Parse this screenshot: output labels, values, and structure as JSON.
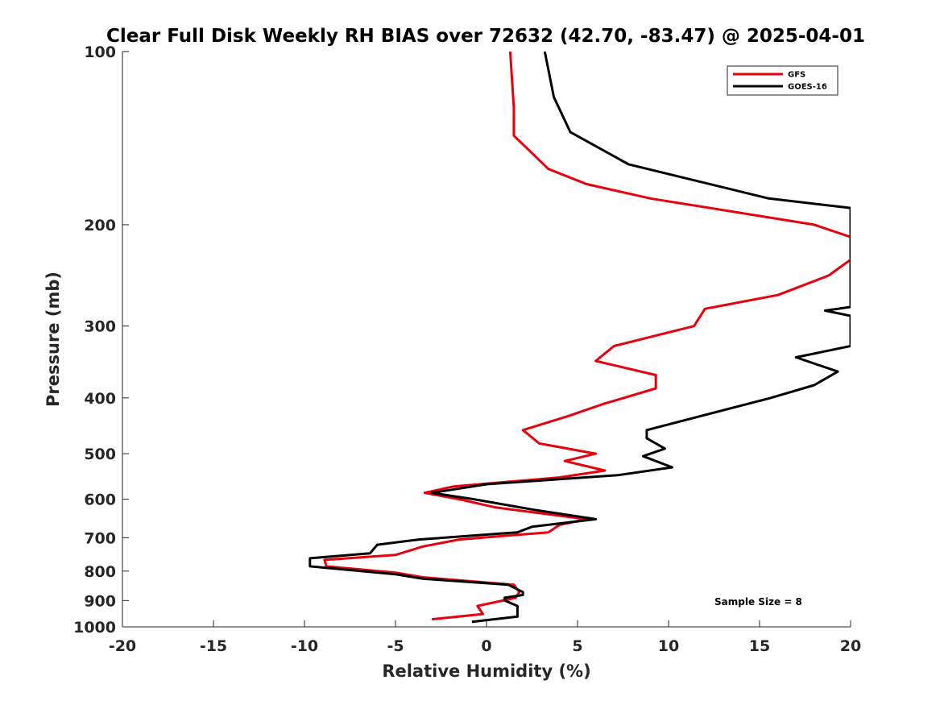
{
  "chart_data": {
    "type": "line",
    "title": "Clear Full Disk Weekly RH BIAS over 72632 (42.70, -83.47) @ 2025-04-01",
    "xlabel": "Relative Humidity (%)",
    "ylabel": "Pressure (mb)",
    "xlim": [
      -20,
      20
    ],
    "ylim": [
      100,
      1000
    ],
    "yscale": "log",
    "y_reversed": true,
    "xticks": [
      "-20",
      "-15",
      "-10",
      "-5",
      "0",
      "5",
      "10",
      "15",
      "20"
    ],
    "yticks": [
      {
        "value": 100,
        "label": "100"
      },
      {
        "value": 200,
        "label": "200"
      },
      {
        "value": 300,
        "label": "300"
      },
      {
        "value": 400,
        "label": "400"
      },
      {
        "value": 500,
        "label": "500"
      },
      {
        "value": 600,
        "label": "600"
      },
      {
        "value": 700,
        "label": "700"
      },
      {
        "value": 800,
        "label": "800"
      },
      {
        "value": 900,
        "label": "900"
      },
      {
        "value": 1000,
        "label": "1000"
      }
    ],
    "grid": false,
    "legend_position": "top-right",
    "series": [
      {
        "name": "GFS",
        "color": "#e8000b",
        "points": [
          [
            1.3,
            100
          ],
          [
            1.5,
            125
          ],
          [
            1.5,
            140
          ],
          [
            3.4,
            160
          ],
          [
            5.5,
            170
          ],
          [
            9.0,
            180
          ],
          [
            18.0,
            200
          ],
          [
            20.0,
            210
          ],
          [
            20.0,
            230
          ],
          [
            18.8,
            245
          ],
          [
            16.0,
            265
          ],
          [
            12.0,
            280
          ],
          [
            11.4,
            300
          ],
          [
            7.0,
            325
          ],
          [
            6.0,
            345
          ],
          [
            9.3,
            365
          ],
          [
            9.3,
            385
          ],
          [
            6.4,
            410
          ],
          [
            4.5,
            430
          ],
          [
            2.0,
            455
          ],
          [
            2.9,
            480
          ],
          [
            6.0,
            500
          ],
          [
            4.3,
            515
          ],
          [
            6.5,
            535
          ],
          [
            4.0,
            550
          ],
          [
            -1.8,
            570
          ],
          [
            -3.4,
            585
          ],
          [
            -1.5,
            600
          ],
          [
            0.5,
            620
          ],
          [
            5.5,
            650
          ],
          [
            4.0,
            665
          ],
          [
            3.4,
            685
          ],
          [
            -1.5,
            705
          ],
          [
            -3.5,
            725
          ],
          [
            -5.0,
            750
          ],
          [
            -8.9,
            765
          ],
          [
            -8.8,
            785
          ],
          [
            -5.0,
            805
          ],
          [
            -3.5,
            820
          ],
          [
            1.5,
            845
          ],
          [
            1.8,
            870
          ],
          [
            1.6,
            890
          ],
          [
            -0.5,
            920
          ],
          [
            -0.2,
            950
          ],
          [
            -3.0,
            970
          ]
        ]
      },
      {
        "name": "GOES-16",
        "color": "#000000",
        "points": [
          [
            3.2,
            100
          ],
          [
            3.7,
            120
          ],
          [
            4.6,
            138
          ],
          [
            7.8,
            157
          ],
          [
            15.5,
            180
          ],
          [
            20.0,
            187
          ],
          [
            20.0,
            278
          ],
          [
            18.6,
            282
          ],
          [
            20.0,
            288
          ],
          [
            20.0,
            325
          ],
          [
            17.0,
            340
          ],
          [
            19.3,
            360
          ],
          [
            18.0,
            380
          ],
          [
            15.6,
            400
          ],
          [
            8.8,
            455
          ],
          [
            8.8,
            470
          ],
          [
            9.8,
            490
          ],
          [
            8.6,
            505
          ],
          [
            10.2,
            528
          ],
          [
            7.2,
            545
          ],
          [
            0.0,
            565
          ],
          [
            -3.0,
            585
          ],
          [
            -0.7,
            600
          ],
          [
            2.5,
            625
          ],
          [
            6.0,
            650
          ],
          [
            2.5,
            670
          ],
          [
            1.7,
            685
          ],
          [
            -3.7,
            705
          ],
          [
            -6.0,
            720
          ],
          [
            -6.4,
            745
          ],
          [
            -9.7,
            760
          ],
          [
            -9.7,
            785
          ],
          [
            -5.0,
            810
          ],
          [
            -3.5,
            825
          ],
          [
            1.2,
            845
          ],
          [
            2.0,
            870
          ],
          [
            2.0,
            880
          ],
          [
            1.0,
            890
          ],
          [
            1.0,
            900
          ],
          [
            1.7,
            920
          ],
          [
            1.7,
            960
          ],
          [
            -0.8,
            980
          ]
        ]
      }
    ],
    "annotation": "Sample Size = 8"
  }
}
